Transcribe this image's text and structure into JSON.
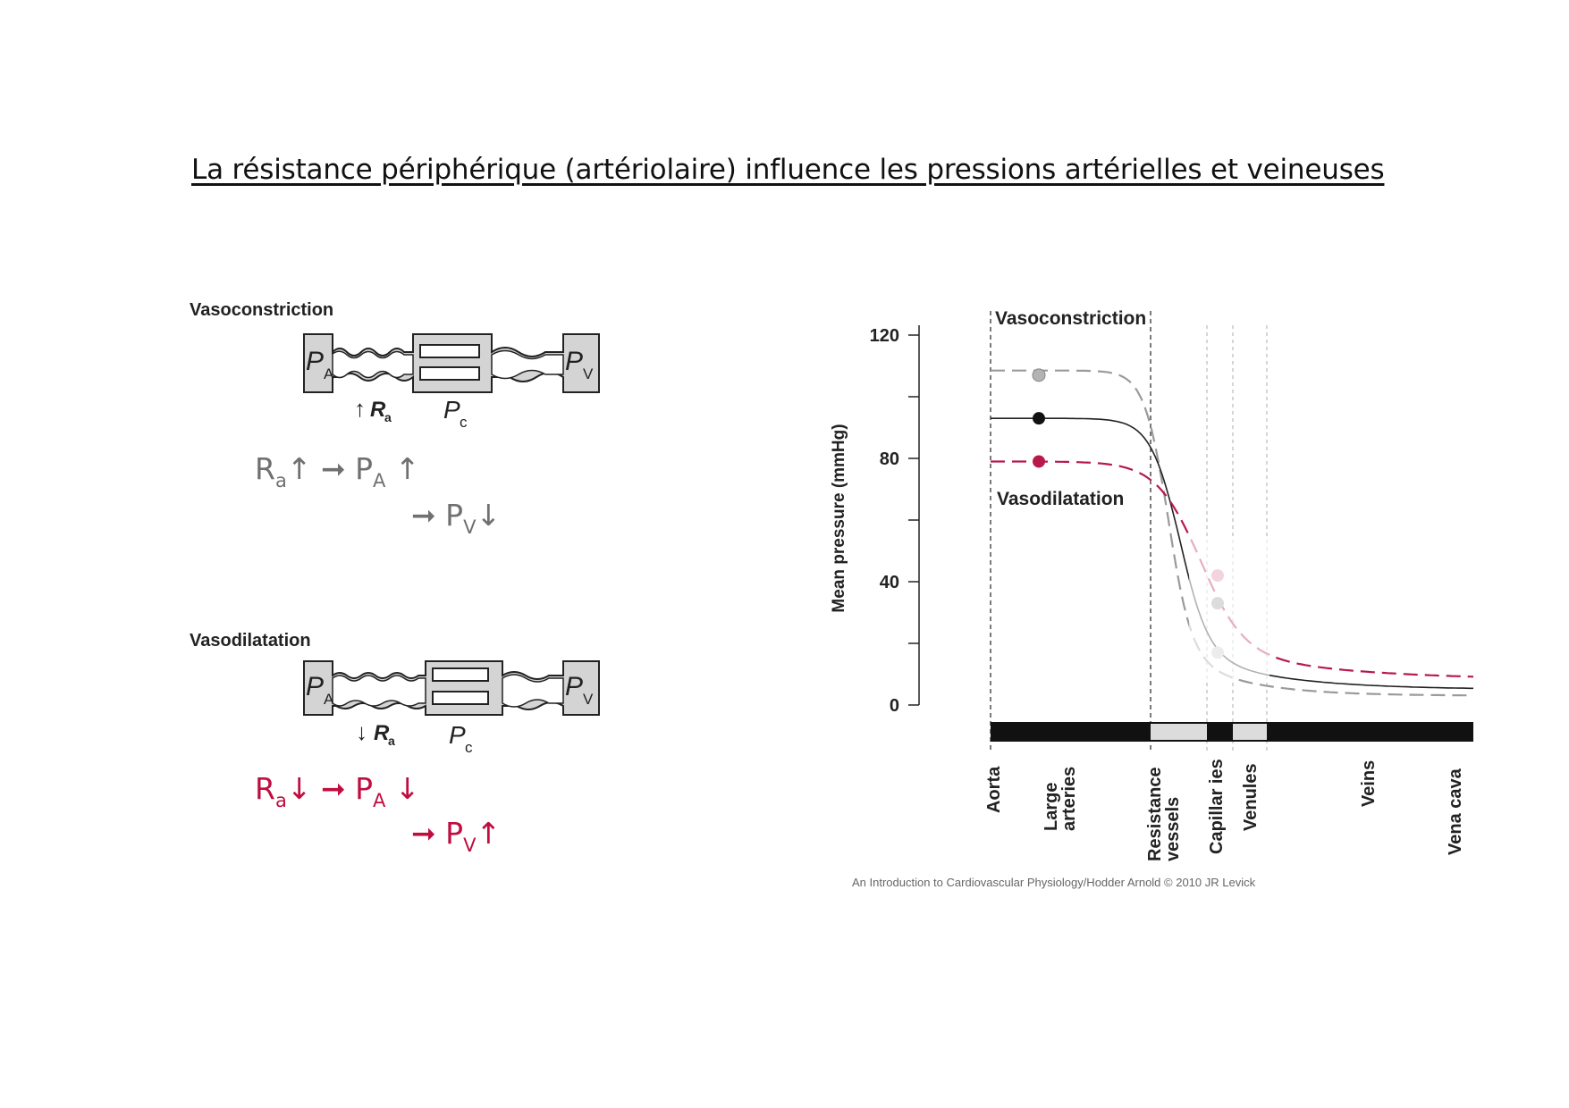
{
  "title": "La résistance périphérique (artériolaire) influence les pressions artérielles et veineuses",
  "vasoconstriction": {
    "label": "Vasoconstriction",
    "diagram": {
      "pa": "P",
      "pa_sub": "A",
      "pv": "P",
      "pv_sub": "V",
      "pc": "P",
      "pc_sub": "c",
      "ra": "R",
      "ra_sub": "a",
      "ra_arrow": "↑"
    },
    "equation_line1": {
      "ra": "R",
      "ra_sub": "a",
      "ra_dir": "↑",
      "arrow": "➞",
      "pa": "P",
      "pa_sub": "A",
      "pa_dir": " ↑"
    },
    "equation_line2": {
      "arrow": "➞",
      "pv": "P",
      "pv_sub": "V",
      "pv_dir": "↓"
    }
  },
  "vasodilatation": {
    "label": "Vasodilatation",
    "diagram": {
      "pa": "P",
      "pa_sub": "A",
      "pv": "P",
      "pv_sub": "V",
      "pc": "P",
      "pc_sub": "c",
      "ra": "R",
      "ra_sub": "a",
      "ra_arrow": "↓"
    },
    "equation_line1": {
      "ra": "R",
      "ra_sub": "a",
      "ra_dir": "↓",
      "arrow": "➞",
      "pa": "P",
      "pa_sub": "A",
      "pa_dir": " ↓"
    },
    "equation_line2": {
      "arrow": "➞",
      "pv": "P",
      "pv_sub": "V",
      "pv_dir": "↑"
    }
  },
  "chart_data": {
    "type": "line",
    "title": "",
    "ylabel": "Mean pressure (mmHg)",
    "ylim": [
      0,
      120
    ],
    "yticks": [
      "0",
      "40",
      "80",
      "120"
    ],
    "x_categories": [
      "Aorta",
      "Large arteries",
      "Resistance vessels",
      "Capillar ies",
      "Venules",
      "Veins",
      "Vena cava"
    ],
    "annotations": [
      "Vasoconstriction",
      "Vasodilatation"
    ],
    "series": [
      {
        "style": "dashed-gray",
        "color": "#9a9a9a",
        "large_arteries": 107,
        "capillaries": 27,
        "vena_cava": 3
      },
      {
        "style": "solid-black",
        "color": "#222222",
        "large_arteries": 93,
        "capillaries": 33,
        "vena_cava": 5
      },
      {
        "style": "dashed-red",
        "color": "#b8194a",
        "large_arteries": 79,
        "capillaries": 42,
        "vena_cava": 8
      }
    ]
  },
  "caption": "An Introduction to Cardiovascular Physiology/Hodder Arnold © 2010 JR Levick",
  "colors": {
    "gray": "#707070",
    "red": "#c00d3f"
  }
}
